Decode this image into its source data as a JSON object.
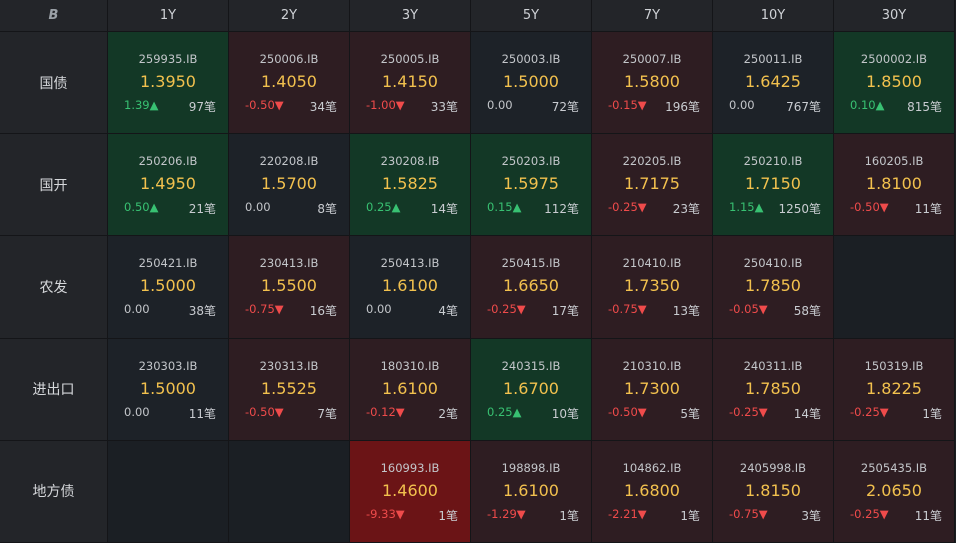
{
  "corner_icon": "B",
  "tenors": [
    "1Y",
    "2Y",
    "3Y",
    "5Y",
    "7Y",
    "10Y",
    "30Y"
  ],
  "rows": [
    {
      "label": "国债",
      "cells": [
        {
          "code": "259935.IB",
          "yield": "1.3950",
          "chg": "1.39▲",
          "dir": "up",
          "count": "97笔",
          "bg": "green"
        },
        {
          "code": "250006.IB",
          "yield": "1.4050",
          "chg": "-0.50▼",
          "dir": "down",
          "count": "34笔",
          "bg": "red"
        },
        {
          "code": "250005.IB",
          "yield": "1.4150",
          "chg": "-1.00▼",
          "dir": "down",
          "count": "33笔",
          "bg": "red"
        },
        {
          "code": "250003.IB",
          "yield": "1.5000",
          "chg": "0.00",
          "dir": "flat",
          "count": "72笔",
          "bg": "neutral"
        },
        {
          "code": "250007.IB",
          "yield": "1.5800",
          "chg": "-0.15▼",
          "dir": "down",
          "count": "196笔",
          "bg": "red"
        },
        {
          "code": "250011.IB",
          "yield": "1.6425",
          "chg": "0.00",
          "dir": "flat",
          "count": "767笔",
          "bg": "neutral"
        },
        {
          "code": "2500002.IB",
          "yield": "1.8500",
          "chg": "0.10▲",
          "dir": "up",
          "count": "815笔",
          "bg": "green"
        }
      ]
    },
    {
      "label": "国开",
      "cells": [
        {
          "code": "250206.IB",
          "yield": "1.4950",
          "chg": "0.50▲",
          "dir": "up",
          "count": "21笔",
          "bg": "green"
        },
        {
          "code": "220208.IB",
          "yield": "1.5700",
          "chg": "0.00",
          "dir": "flat",
          "count": "8笔",
          "bg": "neutral"
        },
        {
          "code": "230208.IB",
          "yield": "1.5825",
          "chg": "0.25▲",
          "dir": "up",
          "count": "14笔",
          "bg": "green"
        },
        {
          "code": "250203.IB",
          "yield": "1.5975",
          "chg": "0.15▲",
          "dir": "up",
          "count": "112笔",
          "bg": "green"
        },
        {
          "code": "220205.IB",
          "yield": "1.7175",
          "chg": "-0.25▼",
          "dir": "down",
          "count": "23笔",
          "bg": "red"
        },
        {
          "code": "250210.IB",
          "yield": "1.7150",
          "chg": "1.15▲",
          "dir": "up",
          "count": "1250笔",
          "bg": "green"
        },
        {
          "code": "160205.IB",
          "yield": "1.8100",
          "chg": "-0.50▼",
          "dir": "down",
          "count": "11笔",
          "bg": "red"
        }
      ]
    },
    {
      "label": "农发",
      "cells": [
        {
          "code": "250421.IB",
          "yield": "1.5000",
          "chg": "0.00",
          "dir": "flat",
          "count": "38笔",
          "bg": "neutral"
        },
        {
          "code": "230413.IB",
          "yield": "1.5500",
          "chg": "-0.75▼",
          "dir": "down",
          "count": "16笔",
          "bg": "red"
        },
        {
          "code": "250413.IB",
          "yield": "1.6100",
          "chg": "0.00",
          "dir": "flat",
          "count": "4笔",
          "bg": "neutral"
        },
        {
          "code": "250415.IB",
          "yield": "1.6650",
          "chg": "-0.25▼",
          "dir": "down",
          "count": "17笔",
          "bg": "red"
        },
        {
          "code": "210410.IB",
          "yield": "1.7350",
          "chg": "-0.75▼",
          "dir": "down",
          "count": "13笔",
          "bg": "red"
        },
        {
          "code": "250410.IB",
          "yield": "1.7850",
          "chg": "-0.05▼",
          "dir": "down",
          "count": "58笔",
          "bg": "red"
        },
        null
      ]
    },
    {
      "label": "进出口",
      "cells": [
        {
          "code": "230303.IB",
          "yield": "1.5000",
          "chg": "0.00",
          "dir": "flat",
          "count": "11笔",
          "bg": "neutral"
        },
        {
          "code": "230313.IB",
          "yield": "1.5525",
          "chg": "-0.50▼",
          "dir": "down",
          "count": "7笔",
          "bg": "red"
        },
        {
          "code": "180310.IB",
          "yield": "1.6100",
          "chg": "-0.12▼",
          "dir": "down",
          "count": "2笔",
          "bg": "red"
        },
        {
          "code": "240315.IB",
          "yield": "1.6700",
          "chg": "0.25▲",
          "dir": "up",
          "count": "10笔",
          "bg": "green"
        },
        {
          "code": "210310.IB",
          "yield": "1.7300",
          "chg": "-0.50▼",
          "dir": "down",
          "count": "5笔",
          "bg": "red"
        },
        {
          "code": "240311.IB",
          "yield": "1.7850",
          "chg": "-0.25▼",
          "dir": "down",
          "count": "14笔",
          "bg": "red"
        },
        {
          "code": "150319.IB",
          "yield": "1.8225",
          "chg": "-0.25▼",
          "dir": "down",
          "count": "1笔",
          "bg": "red"
        }
      ]
    },
    {
      "label": "地方债",
      "cells": [
        null,
        null,
        {
          "code": "160993.IB",
          "yield": "1.4600",
          "chg": "-9.33▼",
          "dir": "down",
          "count": "1笔",
          "bg": "strongred"
        },
        {
          "code": "198898.IB",
          "yield": "1.6100",
          "chg": "-1.29▼",
          "dir": "down",
          "count": "1笔",
          "bg": "red"
        },
        {
          "code": "104862.IB",
          "yield": "1.6800",
          "chg": "-2.21▼",
          "dir": "down",
          "count": "1笔",
          "bg": "red"
        },
        {
          "code": "2405998.IB",
          "yield": "1.8150",
          "chg": "-0.75▼",
          "dir": "down",
          "count": "3笔",
          "bg": "red"
        },
        {
          "code": "2505435.IB",
          "yield": "2.0650",
          "chg": "-0.25▼",
          "dir": "down",
          "count": "11笔",
          "bg": "red"
        }
      ]
    }
  ]
}
